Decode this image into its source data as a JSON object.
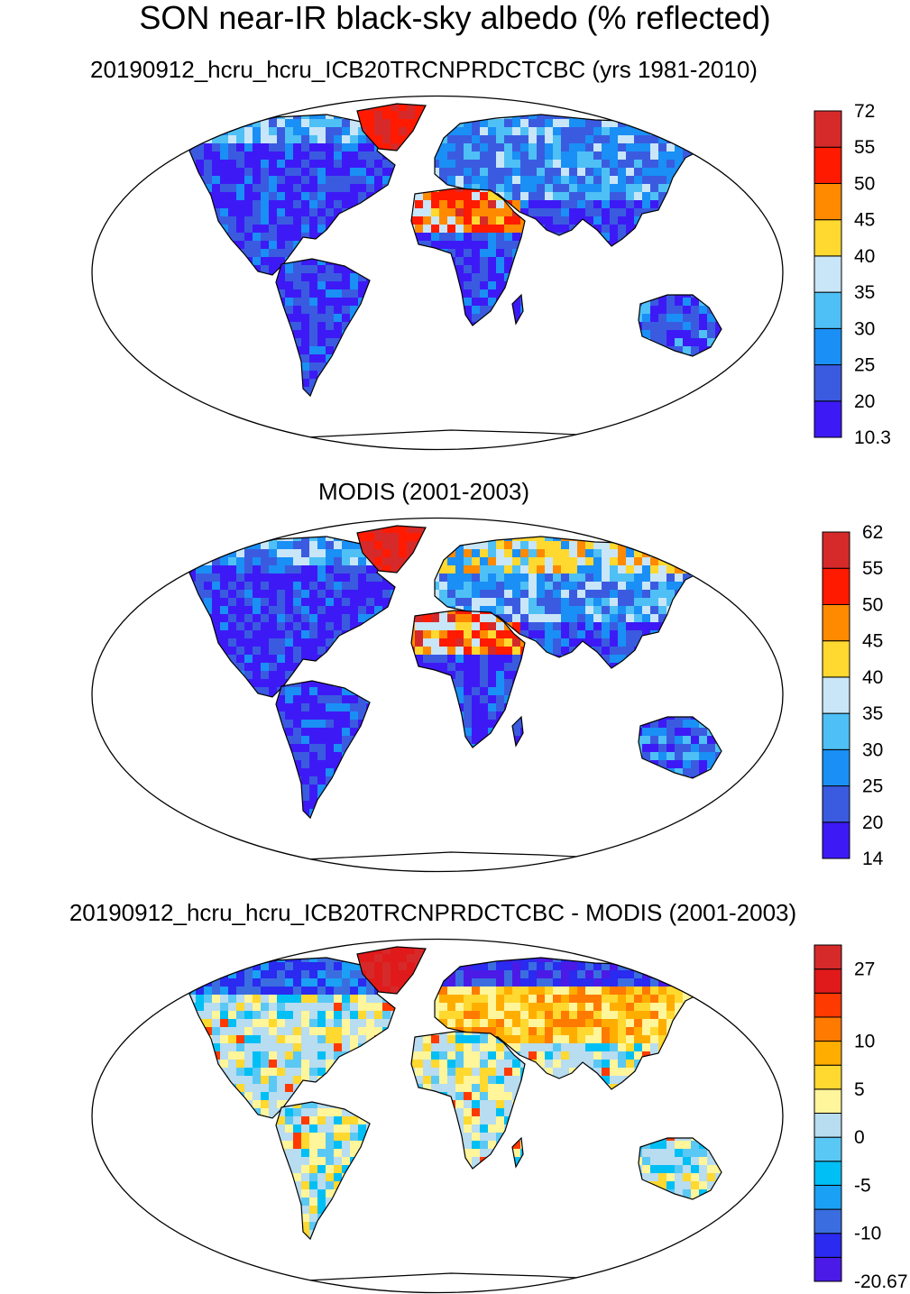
{
  "title": "SON near-IR black-sky albedo (% reflected)",
  "panels": [
    {
      "name": "model",
      "title": "20190912_hcru_hcru_ICB20TRCNPRDCTCBC (yrs 1981-2010)",
      "colorbar": {
        "colors": [
          "#3d1af5",
          "#3a5be0",
          "#1a8ff5",
          "#4ec0f5",
          "#c8e6f7",
          "#ffd830",
          "#ff8a00",
          "#ff1a00",
          "#d62a2a"
        ],
        "labels": [
          "10.3",
          "20",
          "25",
          "30",
          "35",
          "40",
          "45",
          "50",
          "55",
          "72"
        ]
      }
    },
    {
      "name": "obs",
      "title": "MODIS (2001-2003)",
      "colorbar": {
        "colors": [
          "#3d1af5",
          "#3a5be0",
          "#1a8ff5",
          "#4ec0f5",
          "#c8e6f7",
          "#ffd830",
          "#ff8a00",
          "#ff1a00",
          "#d62a2a"
        ],
        "labels": [
          "14",
          "20",
          "25",
          "30",
          "35",
          "40",
          "45",
          "50",
          "55",
          "62"
        ]
      }
    },
    {
      "name": "diff",
      "title": "20190912_hcru_hcru_ICB20TRCNPRDCTCBC - MODIS (2001-2003)",
      "colorbar": {
        "colors": [
          "#4b1ae6",
          "#2a2af0",
          "#3a6ee0",
          "#1aa0f5",
          "#00bff5",
          "#5ac8f5",
          "#b8dcf0",
          "#fff59a",
          "#ffd830",
          "#ffae00",
          "#ff7a00",
          "#ff3a00",
          "#e01a1a",
          "#d62a2a"
        ],
        "labels": [
          "-20.67",
          "",
          "-10",
          "",
          "-5",
          "",
          "0",
          "",
          "5",
          "",
          "10",
          "",
          "",
          "27"
        ]
      }
    }
  ]
}
